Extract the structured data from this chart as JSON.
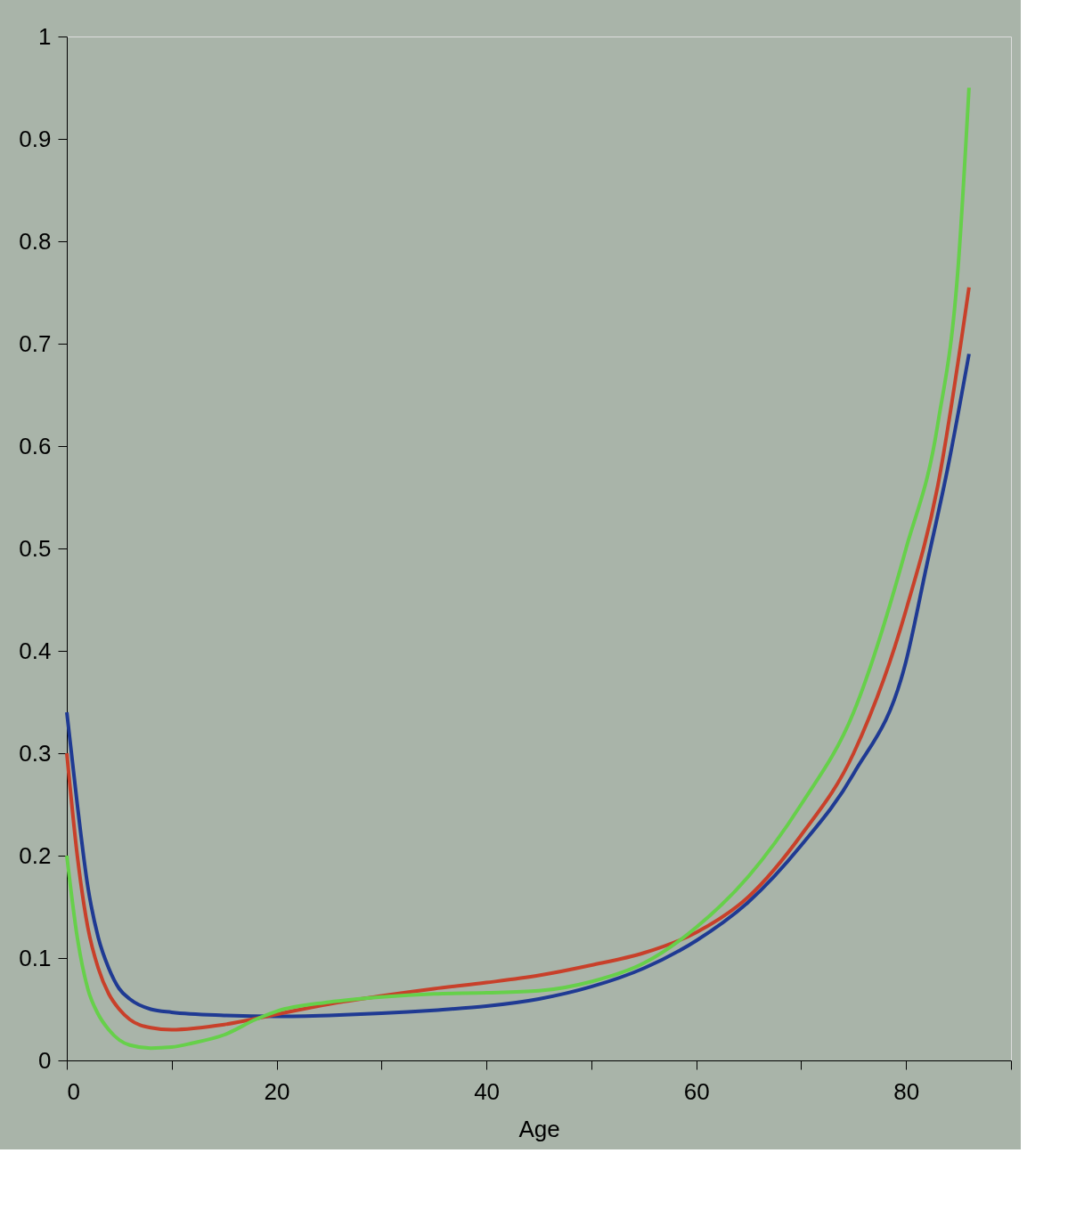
{
  "chart_data": {
    "type": "line",
    "xlabel": "Age",
    "xlim": [
      0,
      90
    ],
    "ylim": [
      0,
      1
    ],
    "xticks": [
      0,
      {
        "value": 10,
        "label": null
      },
      20,
      {
        "value": 30,
        "label": null
      },
      40,
      {
        "value": 50,
        "label": null
      },
      60,
      {
        "value": 70,
        "label": null
      },
      80,
      {
        "value": 90,
        "label": null
      }
    ],
    "yticks": [
      0,
      0.1,
      0.2,
      0.3,
      0.4,
      0.5,
      0.6,
      0.7,
      0.8,
      0.9,
      1
    ],
    "grid": false,
    "marker": "none",
    "line_style": "solid",
    "series": [
      {
        "color": "#1f3a93",
        "x": [
          0,
          1,
          2,
          3,
          4,
          5,
          6,
          8,
          10,
          15,
          20,
          25,
          30,
          35,
          40,
          45,
          50,
          55,
          60,
          65,
          70,
          75,
          80,
          82,
          84,
          86
        ],
        "values": [
          0.34,
          0.25,
          0.17,
          0.12,
          0.09,
          0.07,
          0.06,
          0.05,
          0.047,
          0.044,
          0.043,
          0.044,
          0.046,
          0.049,
          0.053,
          0.06,
          0.072,
          0.09,
          0.117,
          0.155,
          0.21,
          0.28,
          0.39,
          0.485,
          0.58,
          0.69
        ]
      },
      {
        "color": "#c8402a",
        "x": [
          0,
          1,
          2,
          3,
          4,
          5,
          6,
          8,
          10,
          15,
          20,
          25,
          30,
          35,
          40,
          45,
          50,
          55,
          60,
          65,
          70,
          75,
          80,
          83,
          86
        ],
        "values": [
          0.3,
          0.2,
          0.13,
          0.09,
          0.065,
          0.05,
          0.04,
          0.032,
          0.03,
          0.035,
          0.045,
          0.055,
          0.063,
          0.07,
          0.076,
          0.083,
          0.093,
          0.105,
          0.125,
          0.16,
          0.22,
          0.3,
          0.44,
          0.56,
          0.755
        ]
      },
      {
        "color": "#66d04a",
        "x": [
          0,
          1,
          2,
          3,
          4,
          5,
          6,
          8,
          10,
          12,
          15,
          18,
          20,
          25,
          30,
          35,
          40,
          45,
          50,
          55,
          60,
          65,
          70,
          75,
          80,
          83,
          85,
          86
        ],
        "values": [
          0.2,
          0.12,
          0.07,
          0.045,
          0.03,
          0.02,
          0.015,
          0.012,
          0.013,
          0.017,
          0.025,
          0.04,
          0.048,
          0.057,
          0.062,
          0.065,
          0.066,
          0.068,
          0.077,
          0.095,
          0.13,
          0.18,
          0.25,
          0.34,
          0.5,
          0.62,
          0.78,
          0.95
        ]
      }
    ]
  }
}
